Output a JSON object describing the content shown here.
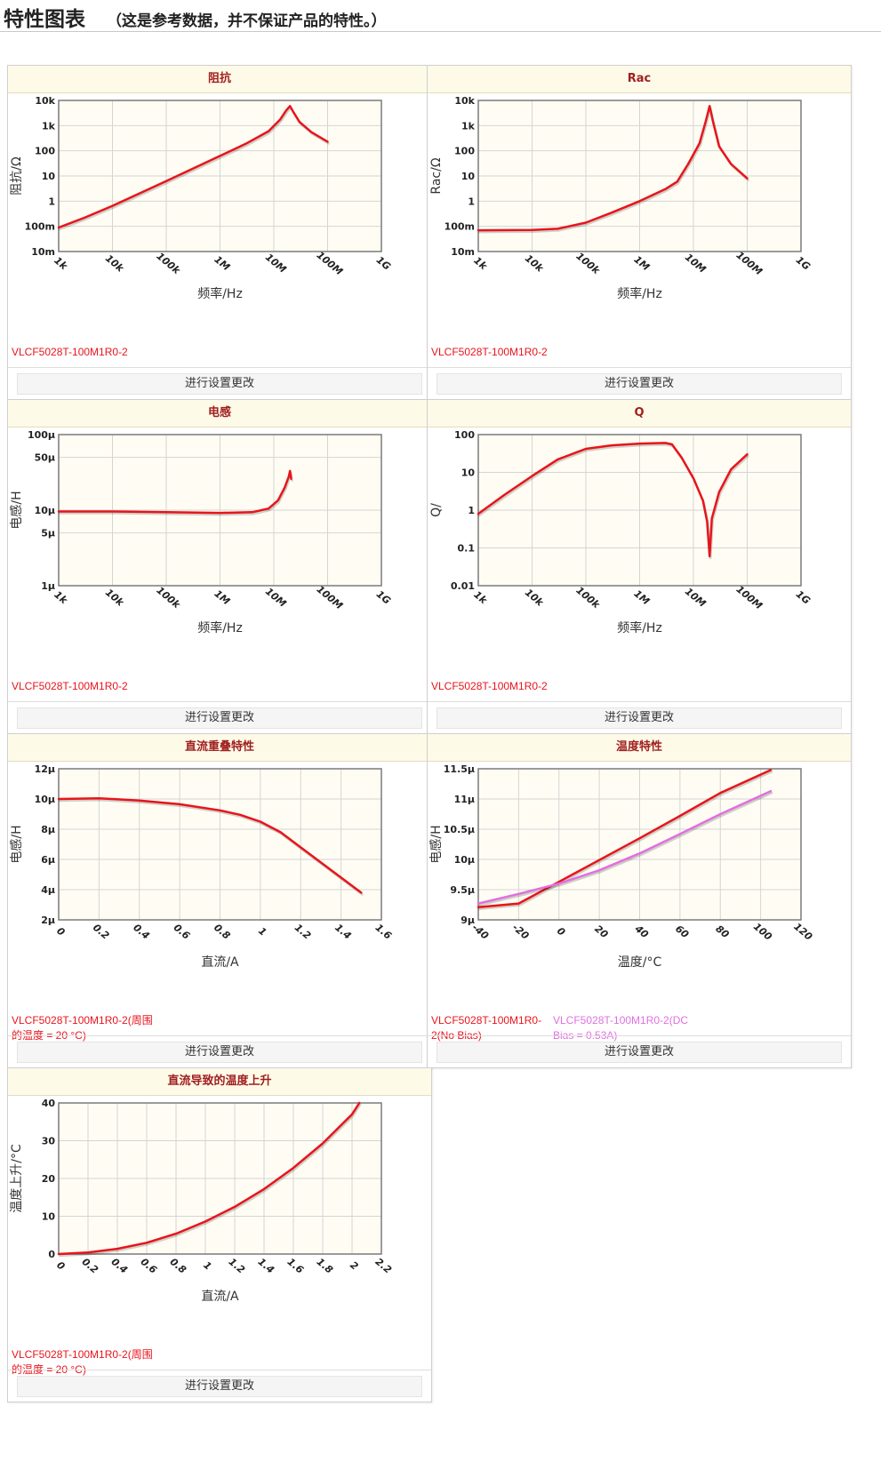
{
  "page": {
    "title": "特性图表",
    "note": "（这是参考数据，并不保证产品的特性。）"
  },
  "colors": {
    "series_red": "#e8141c",
    "series_violet": "#e070e0",
    "plot_bg": "#fffdf3",
    "panel_title": "#a02020"
  },
  "button_label": "进行设置更改",
  "chart_data": [
    {
      "id": "impedance",
      "type": "line",
      "title": "阻抗",
      "xlabel": "频率/Hz",
      "ylabel": "阻抗/Ω",
      "x_scale": "log",
      "y_scale": "log",
      "xlim": [
        1000,
        1000000000
      ],
      "ylim": [
        0.01,
        10000
      ],
      "x_ticks": [
        {
          "v": 1000,
          "label": "1k"
        },
        {
          "v": 10000,
          "label": "10k"
        },
        {
          "v": 100000,
          "label": "100k"
        },
        {
          "v": 1000000,
          "label": "1M"
        },
        {
          "v": 10000000,
          "label": "10M"
        },
        {
          "v": 100000000,
          "label": "100M"
        },
        {
          "v": 1000000000,
          "label": "1G"
        }
      ],
      "y_ticks": [
        {
          "v": 10000,
          "label": "10k"
        },
        {
          "v": 1000,
          "label": "1k"
        },
        {
          "v": 100,
          "label": "100"
        },
        {
          "v": 10,
          "label": "10"
        },
        {
          "v": 1,
          "label": "1"
        },
        {
          "v": 0.1,
          "label": "100m"
        },
        {
          "v": 0.01,
          "label": "10m"
        }
      ],
      "grid": true,
      "series": [
        {
          "label": "VLCF5028T-100M1R0-2",
          "color": "#e8141c",
          "points": [
            [
              1000,
              0.09
            ],
            [
              3000,
              0.22
            ],
            [
              10000,
              0.65
            ],
            [
              100000,
              6.3
            ],
            [
              1000000,
              63
            ],
            [
              3000000,
              190
            ],
            [
              8000000,
              600
            ],
            [
              13000000,
              1700
            ],
            [
              17000000,
              4000
            ],
            [
              20000000,
              6000
            ],
            [
              23000000,
              3500
            ],
            [
              30000000,
              1400
            ],
            [
              50000000,
              550
            ],
            [
              100000000,
              230
            ]
          ]
        }
      ]
    },
    {
      "id": "rac",
      "type": "line",
      "title": "Rac",
      "xlabel": "频率/Hz",
      "ylabel": "Rac/Ω",
      "x_scale": "log",
      "y_scale": "log",
      "xlim": [
        1000,
        1000000000
      ],
      "ylim": [
        0.01,
        10000
      ],
      "x_ticks": [
        {
          "v": 1000,
          "label": "1k"
        },
        {
          "v": 10000,
          "label": "10k"
        },
        {
          "v": 100000,
          "label": "100k"
        },
        {
          "v": 1000000,
          "label": "1M"
        },
        {
          "v": 10000000,
          "label": "10M"
        },
        {
          "v": 100000000,
          "label": "100M"
        },
        {
          "v": 1000000000,
          "label": "1G"
        }
      ],
      "y_ticks": [
        {
          "v": 10000,
          "label": "10k"
        },
        {
          "v": 1000,
          "label": "1k"
        },
        {
          "v": 100,
          "label": "100"
        },
        {
          "v": 10,
          "label": "10"
        },
        {
          "v": 1,
          "label": "1"
        },
        {
          "v": 0.1,
          "label": "100m"
        },
        {
          "v": 0.01,
          "label": "10m"
        }
      ],
      "grid": true,
      "series": [
        {
          "label": "VLCF5028T-100M1R0-2",
          "color": "#e8141c",
          "points": [
            [
              1000,
              0.07
            ],
            [
              10000,
              0.072
            ],
            [
              30000,
              0.08
            ],
            [
              100000,
              0.14
            ],
            [
              300000,
              0.35
            ],
            [
              1000000,
              1.0
            ],
            [
              3000000,
              3.0
            ],
            [
              5000000,
              6
            ],
            [
              8000000,
              30
            ],
            [
              13000000,
              200
            ],
            [
              17000000,
              1500
            ],
            [
              20000000,
              6000
            ],
            [
              23000000,
              1500
            ],
            [
              30000000,
              150
            ],
            [
              50000000,
              30
            ],
            [
              100000000,
              8
            ]
          ]
        }
      ]
    },
    {
      "id": "inductance",
      "type": "line",
      "title": "电感",
      "xlabel": "频率/Hz",
      "ylabel": "电感/H",
      "x_scale": "log",
      "y_scale": "log",
      "xlim": [
        1000,
        1000000000
      ],
      "ylim": [
        1e-06,
        0.0001
      ],
      "x_ticks": [
        {
          "v": 1000,
          "label": "1k"
        },
        {
          "v": 10000,
          "label": "10k"
        },
        {
          "v": 100000,
          "label": "100k"
        },
        {
          "v": 1000000,
          "label": "1M"
        },
        {
          "v": 10000000,
          "label": "10M"
        },
        {
          "v": 100000000,
          "label": "100M"
        },
        {
          "v": 1000000000,
          "label": "1G"
        }
      ],
      "y_ticks": [
        {
          "v": 0.0001,
          "label": "100µ"
        },
        {
          "v": 5e-05,
          "label": "50µ"
        },
        {
          "v": 1e-05,
          "label": "10µ"
        },
        {
          "v": 5e-06,
          "label": "5µ"
        },
        {
          "v": 1e-06,
          "label": "1µ"
        }
      ],
      "grid": true,
      "series": [
        {
          "label": "VLCF5028T-100M1R0-2",
          "color": "#e8141c",
          "points": [
            [
              1000,
              9.6e-06
            ],
            [
              10000,
              9.6e-06
            ],
            [
              100000,
              9.4e-06
            ],
            [
              1000000,
              9.2e-06
            ],
            [
              4000000,
              9.4e-06
            ],
            [
              8000000,
              1.05e-05
            ],
            [
              12000000,
              1.35e-05
            ],
            [
              16000000,
              2e-05
            ],
            [
              19000000,
              2.8e-05
            ],
            [
              20000000,
              3.3e-05
            ],
            [
              21000000,
              2.6e-05
            ]
          ]
        }
      ]
    },
    {
      "id": "q",
      "type": "line",
      "title": "Q",
      "xlabel": "频率/Hz",
      "ylabel": "Q/",
      "x_scale": "log",
      "y_scale": "log",
      "xlim": [
        1000,
        1000000000
      ],
      "ylim": [
        0.01,
        100
      ],
      "x_ticks": [
        {
          "v": 1000,
          "label": "1k"
        },
        {
          "v": 10000,
          "label": "10k"
        },
        {
          "v": 100000,
          "label": "100k"
        },
        {
          "v": 1000000,
          "label": "1M"
        },
        {
          "v": 10000000,
          "label": "10M"
        },
        {
          "v": 100000000,
          "label": "100M"
        },
        {
          "v": 1000000000,
          "label": "1G"
        }
      ],
      "y_ticks": [
        {
          "v": 100,
          "label": "100"
        },
        {
          "v": 10,
          "label": "10"
        },
        {
          "v": 1,
          "label": "1"
        },
        {
          "v": 0.1,
          "label": "0.1"
        },
        {
          "v": 0.01,
          "label": "0.01"
        }
      ],
      "grid": true,
      "series": [
        {
          "label": "VLCF5028T-100M1R0-2",
          "color": "#e8141c",
          "points": [
            [
              1000,
              0.8
            ],
            [
              3000,
              2.5
            ],
            [
              10000,
              8
            ],
            [
              30000,
              22
            ],
            [
              100000,
              42
            ],
            [
              300000,
              52
            ],
            [
              1000000,
              58
            ],
            [
              3000000,
              60
            ],
            [
              4000000,
              55
            ],
            [
              6000000,
              25
            ],
            [
              10000000,
              7
            ],
            [
              15000000,
              1.8
            ],
            [
              18000000,
              0.5
            ],
            [
              20000000,
              0.06
            ],
            [
              22000000,
              0.6
            ],
            [
              30000000,
              3
            ],
            [
              50000000,
              12
            ],
            [
              100000000,
              30
            ]
          ]
        }
      ]
    },
    {
      "id": "dc-bias",
      "type": "line",
      "title": "直流重叠特性",
      "xlabel": "直流/A",
      "ylabel": "电感/H",
      "x_scale": "linear",
      "y_scale": "linear",
      "xlim": [
        0,
        1.6
      ],
      "ylim": [
        2e-06,
        1.2e-05
      ],
      "x_ticks": [
        {
          "v": 0,
          "label": "0"
        },
        {
          "v": 0.2,
          "label": "0.2"
        },
        {
          "v": 0.4,
          "label": "0.4"
        },
        {
          "v": 0.6,
          "label": "0.6"
        },
        {
          "v": 0.8,
          "label": "0.8"
        },
        {
          "v": 1,
          "label": "1"
        },
        {
          "v": 1.2,
          "label": "1.2"
        },
        {
          "v": 1.4,
          "label": "1.4"
        },
        {
          "v": 1.6,
          "label": "1.6"
        }
      ],
      "y_ticks": [
        {
          "v": 1.2e-05,
          "label": "12µ"
        },
        {
          "v": 1e-05,
          "label": "10µ"
        },
        {
          "v": 8e-06,
          "label": "8µ"
        },
        {
          "v": 6e-06,
          "label": "6µ"
        },
        {
          "v": 4e-06,
          "label": "4µ"
        },
        {
          "v": 2e-06,
          "label": "2µ"
        }
      ],
      "grid": true,
      "series": [
        {
          "label": "VLCF5028T-100M1R0-2(周围的温度 = 20 °C)",
          "color": "#e8141c",
          "points": [
            [
              0,
              1e-05
            ],
            [
              0.2,
              1.005e-05
            ],
            [
              0.4,
              9.9e-06
            ],
            [
              0.6,
              9.65e-06
            ],
            [
              0.8,
              9.25e-06
            ],
            [
              0.9,
              8.95e-06
            ],
            [
              1.0,
              8.5e-06
            ],
            [
              1.1,
              7.8e-06
            ],
            [
              1.2,
              6.8e-06
            ],
            [
              1.3,
              5.8e-06
            ],
            [
              1.4,
              4.8e-06
            ],
            [
              1.5,
              3.8e-06
            ]
          ]
        }
      ]
    },
    {
      "id": "temperature",
      "type": "line",
      "title": "温度特性",
      "xlabel": "温度/°C",
      "ylabel": "电感/H",
      "x_scale": "linear",
      "y_scale": "linear",
      "xlim": [
        -40,
        120
      ],
      "ylim": [
        9e-06,
        1.15e-05
      ],
      "x_ticks": [
        {
          "v": -40,
          "label": "-40"
        },
        {
          "v": -20,
          "label": "-20"
        },
        {
          "v": 0,
          "label": "0"
        },
        {
          "v": 20,
          "label": "20"
        },
        {
          "v": 40,
          "label": "40"
        },
        {
          "v": 60,
          "label": "60"
        },
        {
          "v": 80,
          "label": "80"
        },
        {
          "v": 100,
          "label": "100"
        },
        {
          "v": 120,
          "label": "120"
        }
      ],
      "y_ticks": [
        {
          "v": 1.15e-05,
          "label": "11.5µ"
        },
        {
          "v": 1.1e-05,
          "label": "11µ"
        },
        {
          "v": 1.05e-05,
          "label": "10.5µ"
        },
        {
          "v": 1e-05,
          "label": "10µ"
        },
        {
          "v": 9.5e-06,
          "label": "9.5µ"
        },
        {
          "v": 9e-06,
          "label": "9µ"
        }
      ],
      "grid": true,
      "series": [
        {
          "label": "VLCF5028T-100M1R0-2(No Bias)",
          "color": "#e8141c",
          "points": [
            [
              -40,
              9.21e-06
            ],
            [
              -20,
              9.27e-06
            ],
            [
              0,
              9.63e-06
            ],
            [
              20,
              9.99e-06
            ],
            [
              40,
              1.035e-05
            ],
            [
              60,
              1.072e-05
            ],
            [
              80,
              1.11e-05
            ],
            [
              105,
              1.148e-05
            ]
          ]
        },
        {
          "label": "VLCF5028T-100M1R0-2(DC Bias = 0.53A)",
          "color": "#e070e0",
          "points": [
            [
              -40,
              9.27e-06
            ],
            [
              -20,
              9.43e-06
            ],
            [
              0,
              9.6e-06
            ],
            [
              20,
              9.82e-06
            ],
            [
              40,
              1.01e-05
            ],
            [
              60,
              1.042e-05
            ],
            [
              80,
              1.075e-05
            ],
            [
              105,
              1.113e-05
            ]
          ]
        }
      ]
    },
    {
      "id": "temp-rise",
      "type": "line",
      "title": "直流导致的温度上升",
      "xlabel": "直流/A",
      "ylabel": "温度上升/°C",
      "x_scale": "linear",
      "y_scale": "linear",
      "xlim": [
        0,
        2.2
      ],
      "ylim": [
        0,
        40
      ],
      "x_ticks": [
        {
          "v": 0,
          "label": "0"
        },
        {
          "v": 0.2,
          "label": "0.2"
        },
        {
          "v": 0.4,
          "label": "0.4"
        },
        {
          "v": 0.6,
          "label": "0.6"
        },
        {
          "v": 0.8,
          "label": "0.8"
        },
        {
          "v": 1,
          "label": "1"
        },
        {
          "v": 1.2,
          "label": "1.2"
        },
        {
          "v": 1.4,
          "label": "1.4"
        },
        {
          "v": 1.6,
          "label": "1.6"
        },
        {
          "v": 1.8,
          "label": "1.8"
        },
        {
          "v": 2,
          "label": "2"
        },
        {
          "v": 2.2,
          "label": "2.2"
        }
      ],
      "y_ticks": [
        {
          "v": 40,
          "label": "40"
        },
        {
          "v": 30,
          "label": "30"
        },
        {
          "v": 20,
          "label": "20"
        },
        {
          "v": 10,
          "label": "10"
        },
        {
          "v": 0,
          "label": "0"
        }
      ],
      "grid": true,
      "series": [
        {
          "label": "VLCF5028T-100M1R0-2(周围的温度 = 20 °C)",
          "color": "#e8141c",
          "points": [
            [
              0,
              0
            ],
            [
              0.2,
              0.4
            ],
            [
              0.4,
              1.4
            ],
            [
              0.6,
              3.0
            ],
            [
              0.8,
              5.4
            ],
            [
              1.0,
              8.6
            ],
            [
              1.2,
              12.5
            ],
            [
              1.4,
              17.2
            ],
            [
              1.6,
              22.8
            ],
            [
              1.8,
              29.3
            ],
            [
              2.0,
              37.0
            ],
            [
              2.05,
              40.0
            ]
          ]
        }
      ]
    }
  ]
}
